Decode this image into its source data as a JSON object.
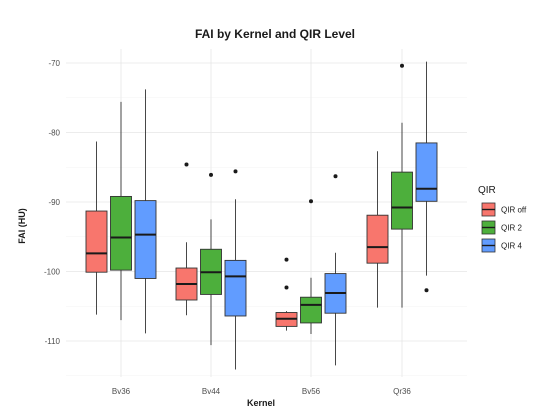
{
  "chart_data": {
    "type": "boxplot",
    "title": "FAI by Kernel and QIR Level",
    "xlabel": "Kernel",
    "ylabel": "FAI (HU)",
    "categories": [
      "Bv36",
      "Bv44",
      "Bv56",
      "Qr36"
    ],
    "ylim": [
      -115,
      -68
    ],
    "yticks": [
      -70,
      -80,
      -90,
      -100,
      -110
    ],
    "grid": true,
    "legend": {
      "title": "QIR",
      "position": "right"
    },
    "series": [
      {
        "name": "QIR off",
        "color": "#F8766D",
        "boxes": [
          {
            "min": -106.2,
            "q1": -100.1,
            "median": -97.4,
            "q3": -91.3,
            "max": -81.3,
            "outliers": []
          },
          {
            "min": -106.3,
            "q1": -104.1,
            "median": -101.8,
            "q3": -99.5,
            "max": -95.8,
            "outliers": [
              -84.6
            ]
          },
          {
            "min": -108.5,
            "q1": -107.9,
            "median": -106.8,
            "q3": -105.9,
            "max": -105.7,
            "outliers": [
              -98.3,
              -102.3
            ]
          },
          {
            "min": -105.2,
            "q1": -98.8,
            "median": -96.5,
            "q3": -91.9,
            "max": -82.7,
            "outliers": []
          }
        ]
      },
      {
        "name": "QIR 2",
        "color": "#4DAF3C",
        "boxes": [
          {
            "min": -107.0,
            "q1": -99.8,
            "median": -95.1,
            "q3": -89.2,
            "max": -75.6,
            "outliers": []
          },
          {
            "min": -110.6,
            "q1": -103.3,
            "median": -100.1,
            "q3": -96.8,
            "max": -92.5,
            "outliers": [
              -86.1
            ]
          },
          {
            "min": -109.0,
            "q1": -107.4,
            "median": -104.8,
            "q3": -103.7,
            "max": -100.9,
            "outliers": [
              -89.9
            ]
          },
          {
            "min": -105.2,
            "q1": -93.9,
            "median": -90.8,
            "q3": -85.7,
            "max": -78.6,
            "outliers": [
              -70.4
            ]
          }
        ]
      },
      {
        "name": "QIR 4",
        "color": "#619CFF",
        "boxes": [
          {
            "min": -108.9,
            "q1": -101.0,
            "median": -94.7,
            "q3": -89.8,
            "max": -73.8,
            "outliers": []
          },
          {
            "min": -114.1,
            "q1": -106.4,
            "median": -100.7,
            "q3": -98.4,
            "max": -89.6,
            "outliers": [
              -85.6
            ]
          },
          {
            "min": -113.5,
            "q1": -106.0,
            "median": -103.1,
            "q3": -100.3,
            "max": -97.3,
            "outliers": [
              -86.3
            ]
          },
          {
            "min": -100.6,
            "q1": -89.9,
            "median": -88.1,
            "q3": -81.5,
            "max": -69.8,
            "outliers": [
              -102.7
            ]
          }
        ]
      }
    ]
  }
}
